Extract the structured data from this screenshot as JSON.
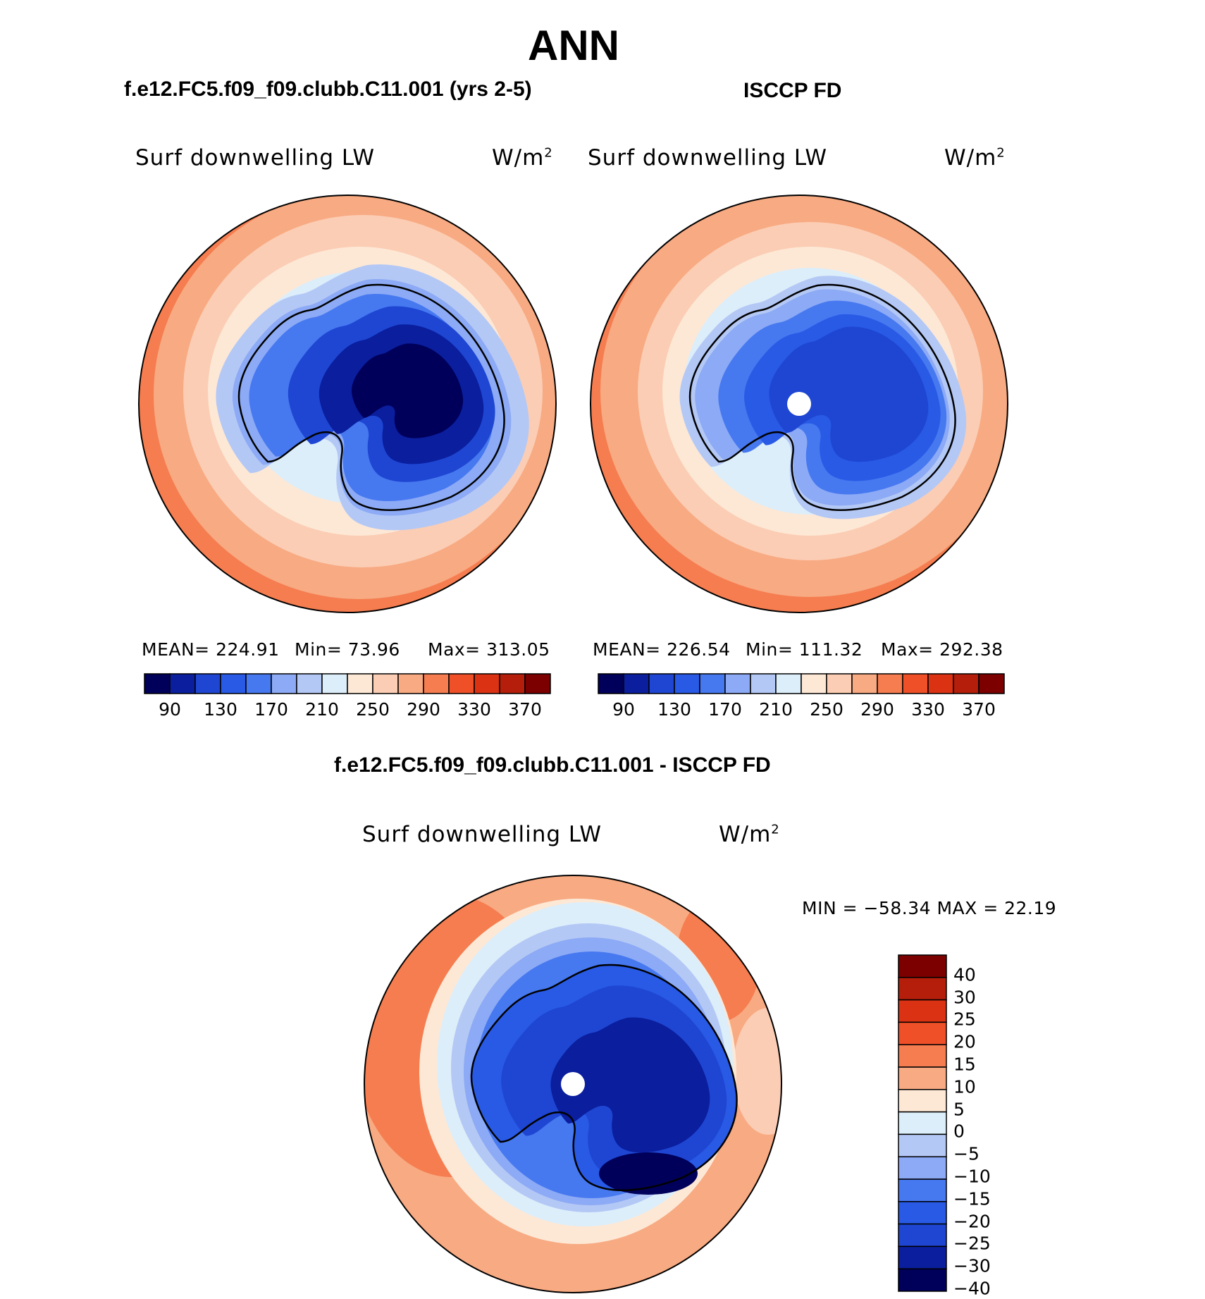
{
  "title": "ANN",
  "panels": [
    {
      "title": "f.e12.FC5.f09_f09.clubb.C11.001 (yrs 2-5)",
      "variable": "Surf downwelling LW",
      "units_base": "W/m",
      "units_sup": "2",
      "stats": {
        "mean": "MEAN= 224.91",
        "min": "Min= 73.96",
        "max": "Max= 313.05"
      }
    },
    {
      "title": "ISCCP FD",
      "variable": "Surf downwelling LW",
      "units_base": "W/m",
      "units_sup": "2",
      "stats": {
        "mean": "MEAN= 226.54",
        "min": "Min= 111.32",
        "max": "Max= 292.38"
      }
    },
    {
      "title": "f.e12.FC5.f09_f09.clubb.C11.001 - ISCCP FD",
      "variable": "Surf downwelling LW",
      "units_base": "W/m",
      "units_sup": "2",
      "stats": {
        "minmax": "MIN = −58.34 MAX = 22.19"
      }
    }
  ],
  "colorbar_abs": {
    "colors": [
      "#00005a",
      "#0a1e9e",
      "#1e46d2",
      "#285ae6",
      "#4678f0",
      "#8caaf5",
      "#b4c8f5",
      "#dceefa",
      "#fde8d6",
      "#fbcdb4",
      "#f8aa82",
      "#f57d50",
      "#f05028",
      "#dc3214",
      "#b41e0a",
      "#7d0000"
    ],
    "labels": [
      "90",
      "130",
      "170",
      "210",
      "250",
      "290",
      "330",
      "370"
    ]
  },
  "colorbar_diff": {
    "colors": [
      "#7d0000",
      "#b41e0a",
      "#dc3214",
      "#f05028",
      "#f57d50",
      "#f8aa82",
      "#fde8d6",
      "#dceefa",
      "#b4c8f5",
      "#8caaf5",
      "#4678f0",
      "#285ae6",
      "#1e46d2",
      "#0a1e9e",
      "#00005a"
    ],
    "labels": [
      "40",
      "30",
      "25",
      "20",
      "15",
      "10",
      "5",
      "0",
      "−5",
      "−10",
      "−15",
      "−20",
      "−25",
      "−30",
      "−40"
    ]
  }
}
